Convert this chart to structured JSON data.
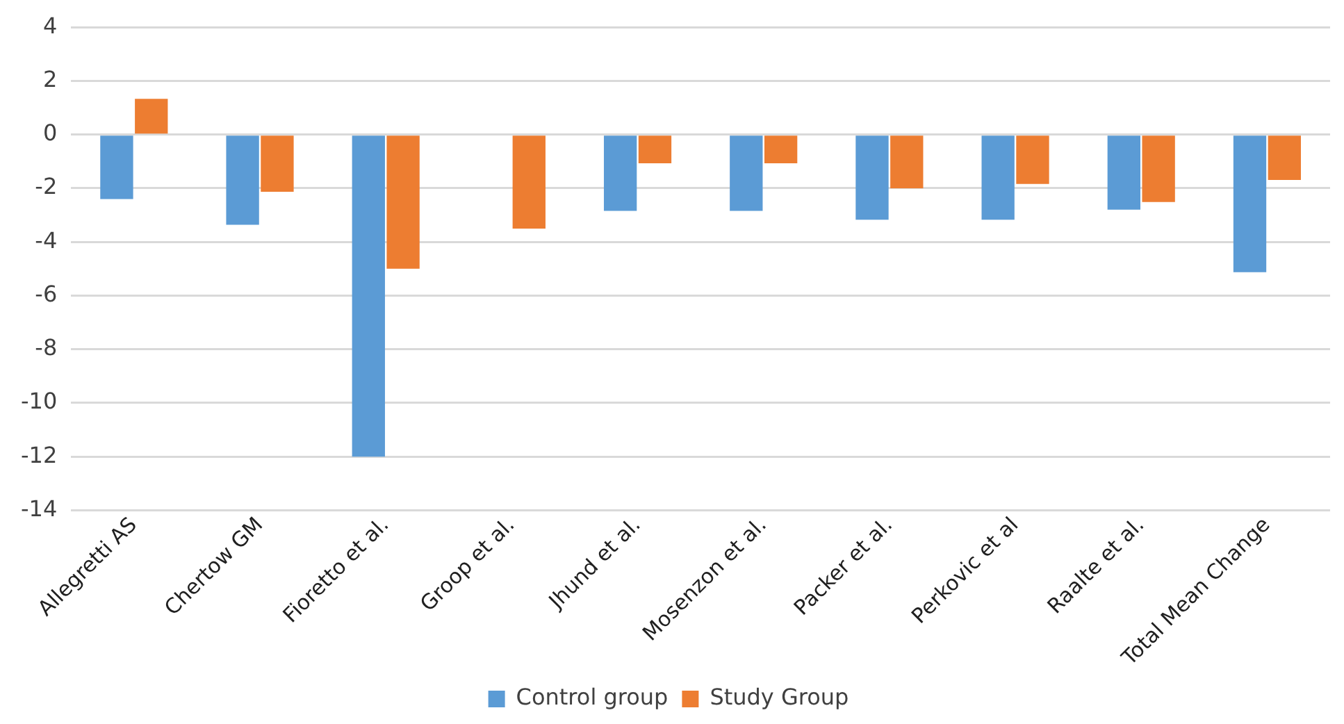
{
  "chart_data": {
    "type": "bar",
    "categories": [
      "Allegretti AS",
      "Chertow GM",
      "Fioretto et al.",
      "Groop et al.",
      "Jhund et al.",
      "Mosenzon et al.",
      "Packer et al.",
      "Perkovic et al",
      "Raalte et al.",
      "Total Mean Change"
    ],
    "series": [
      {
        "name": "Control group",
        "color": "#5b9bd5",
        "values": [
          -2.4,
          -3.36,
          -12,
          null,
          -2.84,
          -2.84,
          -3.17,
          -3.17,
          -2.8,
          -5.13
        ]
      },
      {
        "name": "Study Group",
        "color": "#ed7d31",
        "values": [
          1.33,
          -2.13,
          -5.0,
          -3.5,
          -1.07,
          -1.07,
          -2.0,
          -1.84,
          -2.51,
          -1.69
        ]
      }
    ],
    "ylim": [
      -14,
      4
    ],
    "yticks": [
      -14,
      -12,
      -10,
      -8,
      -6,
      -4,
      -2,
      0,
      2,
      4
    ],
    "grid": "y",
    "legend": "bottom"
  }
}
